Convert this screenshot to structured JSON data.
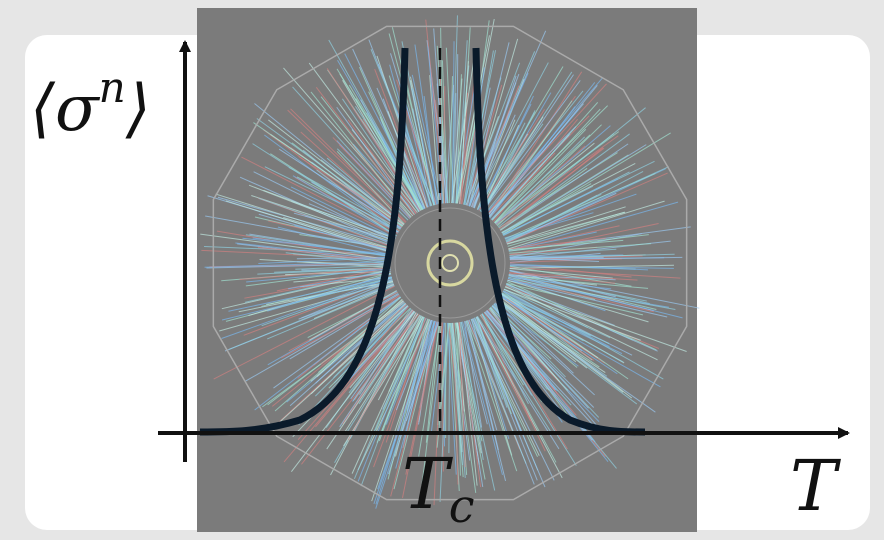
{
  "y_axis_label": {
    "open": "⟨σ",
    "superscript": "n",
    "close": "⟩"
  },
  "x_axis_label": "T",
  "critical_label": {
    "text": "T",
    "subscript": "c"
  }
}
